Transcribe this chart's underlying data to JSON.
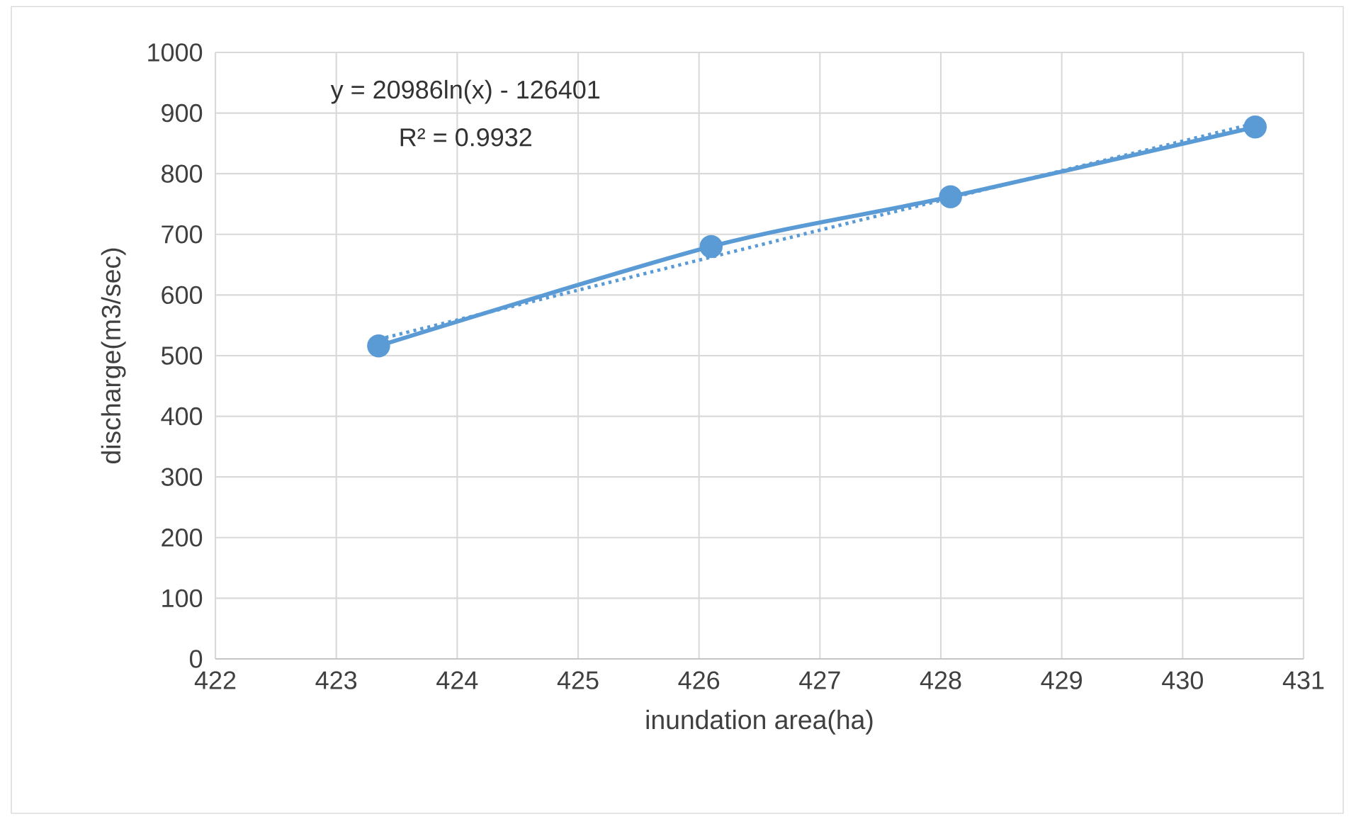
{
  "chart_data": {
    "type": "line",
    "xlabel": "inundation area(ha)",
    "ylabel": "discharge(m3/sec)",
    "xlim": [
      422,
      431
    ],
    "xticks": [
      422,
      423,
      424,
      425,
      426,
      427,
      428,
      429,
      430,
      431
    ],
    "ylim": [
      0,
      1000
    ],
    "yticks": [
      0,
      100,
      200,
      300,
      400,
      500,
      600,
      700,
      800,
      900,
      1000
    ],
    "grid": true,
    "series": [
      {
        "color": "#5b9bd5",
        "marker": "circle",
        "line_style": "solid",
        "x": [
          423.35,
          426.1,
          428.08,
          430.6
        ],
        "values": [
          516,
          680,
          762,
          877
        ]
      },
      {
        "color": "#5b9bd5",
        "marker": "none",
        "line_style": "dotted",
        "x": [
          423.35,
          425,
          427,
          429,
          430.6
        ],
        "values": [
          527,
          608,
          707,
          805,
          883
        ]
      }
    ],
    "annotations": [
      "y = 20986ln(x) - 126401",
      "R² = 0.9932"
    ]
  }
}
